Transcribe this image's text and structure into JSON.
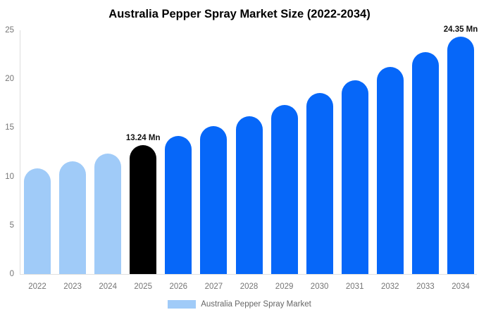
{
  "title": "Australia Pepper Spray Market Size (2022-2034)",
  "legend": {
    "label": "Australia Pepper Spray Market"
  },
  "colors": {
    "historical": "#A0CBF8",
    "base_year": "#000000",
    "forecast": "#0667F9",
    "axis_line": "#dcdcdc",
    "tick_text": "#757575",
    "value_label_text": "#111111",
    "legend_swatch": "#A0CBF8"
  },
  "chart_data": {
    "type": "bar",
    "title": "Australia Pepper Spray Market Size (2022-2034)",
    "xlabel": "",
    "ylabel": "",
    "unit": "Mn",
    "ylim": [
      0,
      25
    ],
    "yticks": [
      0,
      5,
      10,
      15,
      20,
      25
    ],
    "grid": false,
    "legend_position": "bottom",
    "categories": [
      "2022",
      "2023",
      "2024",
      "2025",
      "2026",
      "2027",
      "2028",
      "2029",
      "2030",
      "2031",
      "2032",
      "2033",
      "2034"
    ],
    "values": [
      10.81,
      11.56,
      12.37,
      13.24,
      14.17,
      15.16,
      16.22,
      17.36,
      18.57,
      19.87,
      21.26,
      22.75,
      24.35
    ],
    "segments": [
      "historical",
      "historical",
      "historical",
      "base_year",
      "forecast",
      "forecast",
      "forecast",
      "forecast",
      "forecast",
      "forecast",
      "forecast",
      "forecast",
      "forecast"
    ],
    "point_labels": {
      "2025": "13.24 Mn",
      "2034": "24.35 Mn"
    }
  }
}
